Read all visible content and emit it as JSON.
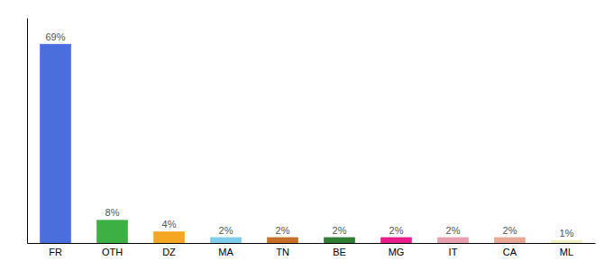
{
  "chart_data": {
    "type": "bar",
    "categories": [
      "FR",
      "OTH",
      "DZ",
      "MA",
      "TN",
      "BE",
      "MG",
      "IT",
      "CA",
      "ML"
    ],
    "values": [
      69,
      8,
      4,
      2,
      2,
      2,
      2,
      2,
      2,
      1
    ],
    "value_labels": [
      "69%",
      "8%",
      "4%",
      "2%",
      "2%",
      "2%",
      "2%",
      "2%",
      "2%",
      "1%"
    ],
    "colors": [
      "#4a6fdc",
      "#3cb043",
      "#f5a623",
      "#7ecbea",
      "#c8702a",
      "#2e7d32",
      "#e91e8c",
      "#e8a0b0",
      "#e8a898",
      "#f0f0c0"
    ],
    "ylim": [
      0,
      78
    ],
    "data_labels": true,
    "tick_labels": "x"
  }
}
